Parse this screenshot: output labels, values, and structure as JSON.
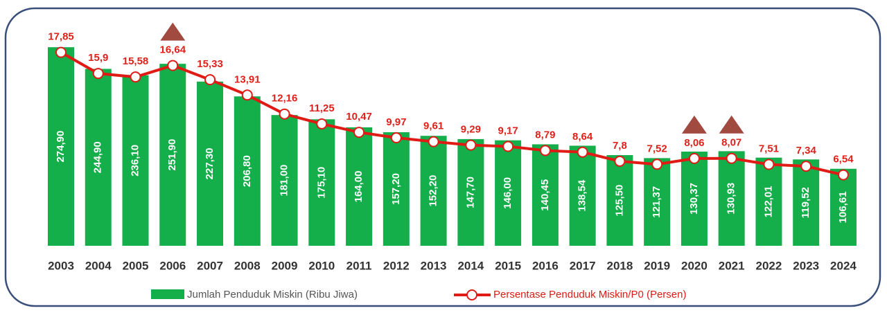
{
  "chart_data": {
    "type": "bar-line",
    "categories": [
      "2003",
      "2004",
      "2005",
      "2006",
      "2007",
      "2008",
      "2009",
      "2010",
      "2011",
      "2012",
      "2013",
      "2014",
      "2015",
      "2016",
      "2017",
      "2018",
      "2019",
      "2020",
      "2021",
      "2022",
      "2023",
      "2024"
    ],
    "series": [
      {
        "name": "Jumlah Penduduk Miskin (Ribu Jiwa)",
        "type": "bar",
        "color": "#14ae4a",
        "values": [
          274.9,
          244.9,
          236.1,
          251.9,
          227.3,
          206.8,
          181.0,
          175.1,
          164.0,
          157.2,
          152.2,
          147.7,
          146.0,
          140.45,
          138.54,
          125.5,
          121.37,
          130.37,
          130.93,
          122.01,
          119.52,
          106.61
        ],
        "value_labels": [
          "274,90",
          "244,90",
          "236,10",
          "251,90",
          "227,30",
          "206,80",
          "181,00",
          "175,10",
          "164,00",
          "157,20",
          "152,20",
          "147,70",
          "146,00",
          "140,45",
          "138,54",
          "125,50",
          "121,37",
          "130,37",
          "130,93",
          "122,01",
          "119,52",
          "106,61"
        ]
      },
      {
        "name": "Persentase Penduduk Miskin/P0 (Persen)",
        "type": "line",
        "axis": "y2",
        "color": "#e01a14",
        "values": [
          17.85,
          15.9,
          15.58,
          16.64,
          15.33,
          13.91,
          12.16,
          11.25,
          10.47,
          9.97,
          9.61,
          9.29,
          9.17,
          8.79,
          8.64,
          7.8,
          7.52,
          8.06,
          8.07,
          7.51,
          7.34,
          6.54
        ],
        "value_labels": [
          "17,85",
          "15,9",
          "15,58",
          "16,64",
          "15,33",
          "13,91",
          "12,16",
          "11,25",
          "10,47",
          "9,97",
          "9,61",
          "9,29",
          "9,17",
          "8,79",
          "8,64",
          "7,8",
          "7,52",
          "8,06",
          "8,07",
          "7,51",
          "7,34",
          "6,54"
        ]
      }
    ],
    "ylim": [
      0,
      300
    ],
    "y2lim": [
      0,
      20
    ],
    "increase_marker_color": "#a04a40"
  }
}
